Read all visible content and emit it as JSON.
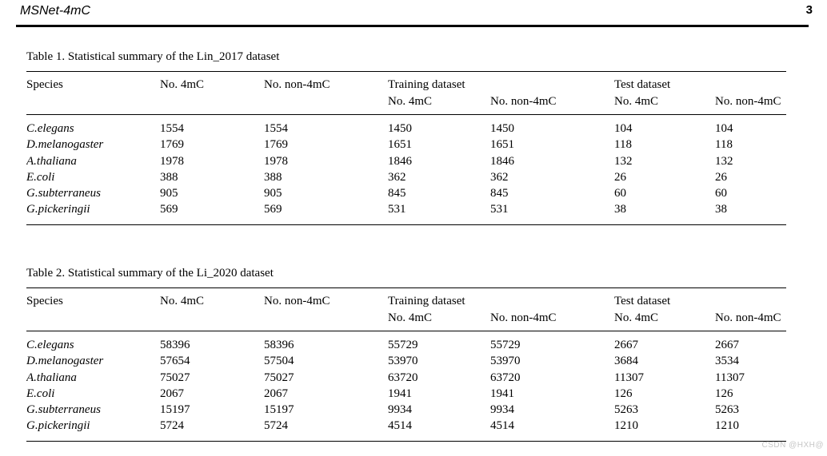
{
  "header": {
    "title": "MSNet-4mC",
    "page_number": "3"
  },
  "table_headers": {
    "species": "Species",
    "no_4mc": "No. 4mC",
    "no_non_4mc": "No. non-4mC",
    "training_group": "Training dataset",
    "test_group": "Test dataset"
  },
  "table1": {
    "caption": "Table 1. Statistical summary of the Lin_2017 dataset",
    "rows": [
      {
        "species": "C.elegans",
        "no_4mc": "1554",
        "no_non_4mc": "1554",
        "train_4mc": "1450",
        "train_non_4mc": "1450",
        "test_4mc": "104",
        "test_non_4mc": "104"
      },
      {
        "species": "D.melanogaster",
        "no_4mc": "1769",
        "no_non_4mc": "1769",
        "train_4mc": "1651",
        "train_non_4mc": "1651",
        "test_4mc": "118",
        "test_non_4mc": "118"
      },
      {
        "species": "A.thaliana",
        "no_4mc": "1978",
        "no_non_4mc": "1978",
        "train_4mc": "1846",
        "train_non_4mc": "1846",
        "test_4mc": "132",
        "test_non_4mc": "132"
      },
      {
        "species": "E.coli",
        "no_4mc": "388",
        "no_non_4mc": "388",
        "train_4mc": "362",
        "train_non_4mc": "362",
        "test_4mc": "26",
        "test_non_4mc": "26"
      },
      {
        "species": "G.subterraneus",
        "no_4mc": "905",
        "no_non_4mc": "905",
        "train_4mc": "845",
        "train_non_4mc": "845",
        "test_4mc": "60",
        "test_non_4mc": "60"
      },
      {
        "species": "G.pickeringii",
        "no_4mc": "569",
        "no_non_4mc": "569",
        "train_4mc": "531",
        "train_non_4mc": "531",
        "test_4mc": "38",
        "test_non_4mc": "38"
      }
    ]
  },
  "table2": {
    "caption": "Table 2. Statistical summary of the Li_2020 dataset",
    "rows": [
      {
        "species": "C.elegans",
        "no_4mc": "58396",
        "no_non_4mc": "58396",
        "train_4mc": "55729",
        "train_non_4mc": "55729",
        "test_4mc": "2667",
        "test_non_4mc": "2667"
      },
      {
        "species": "D.melanogaster",
        "no_4mc": "57654",
        "no_non_4mc": "57504",
        "train_4mc": "53970",
        "train_non_4mc": "53970",
        "test_4mc": "3684",
        "test_non_4mc": "3534"
      },
      {
        "species": "A.thaliana",
        "no_4mc": "75027",
        "no_non_4mc": "75027",
        "train_4mc": "63720",
        "train_non_4mc": "63720",
        "test_4mc": "11307",
        "test_non_4mc": "11307"
      },
      {
        "species": "E.coli",
        "no_4mc": "2067",
        "no_non_4mc": "2067",
        "train_4mc": "1941",
        "train_non_4mc": "1941",
        "test_4mc": "126",
        "test_non_4mc": "126"
      },
      {
        "species": "G.subterraneus",
        "no_4mc": "15197",
        "no_non_4mc": "15197",
        "train_4mc": "9934",
        "train_non_4mc": "9934",
        "test_4mc": "5263",
        "test_non_4mc": "5263"
      },
      {
        "species": "G.pickeringii",
        "no_4mc": "5724",
        "no_non_4mc": "5724",
        "train_4mc": "4514",
        "train_non_4mc": "4514",
        "test_4mc": "1210",
        "test_non_4mc": "1210"
      }
    ]
  },
  "watermark": "CSDN @HXH@"
}
